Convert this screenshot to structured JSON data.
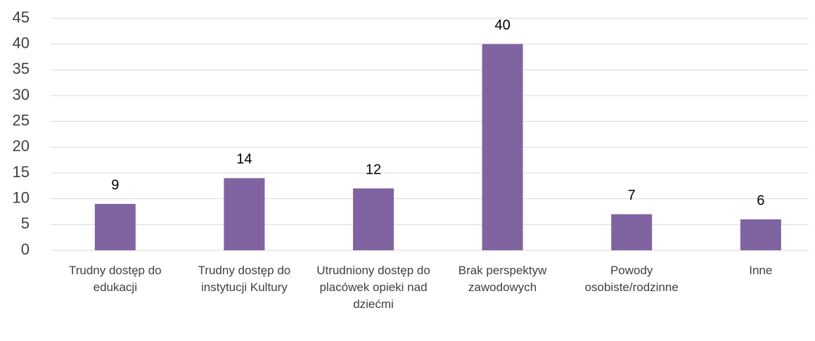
{
  "chart_data": {
    "type": "bar",
    "categories": [
      "Trudny dostęp do edukacji",
      "Trudny dostęp do instytucji Kultury",
      "Utrudniony dostęp do placówek opieki nad dziećmi",
      "Brak perspektyw zawodowych",
      "Powody osobiste/rodzinne",
      "Inne"
    ],
    "values": [
      9,
      14,
      12,
      40,
      7,
      6
    ],
    "color": "#8064a2",
    "ylim": [
      0,
      45
    ],
    "yticks": [
      0,
      5,
      10,
      15,
      20,
      25,
      30,
      35,
      40,
      45
    ],
    "grid": true
  }
}
